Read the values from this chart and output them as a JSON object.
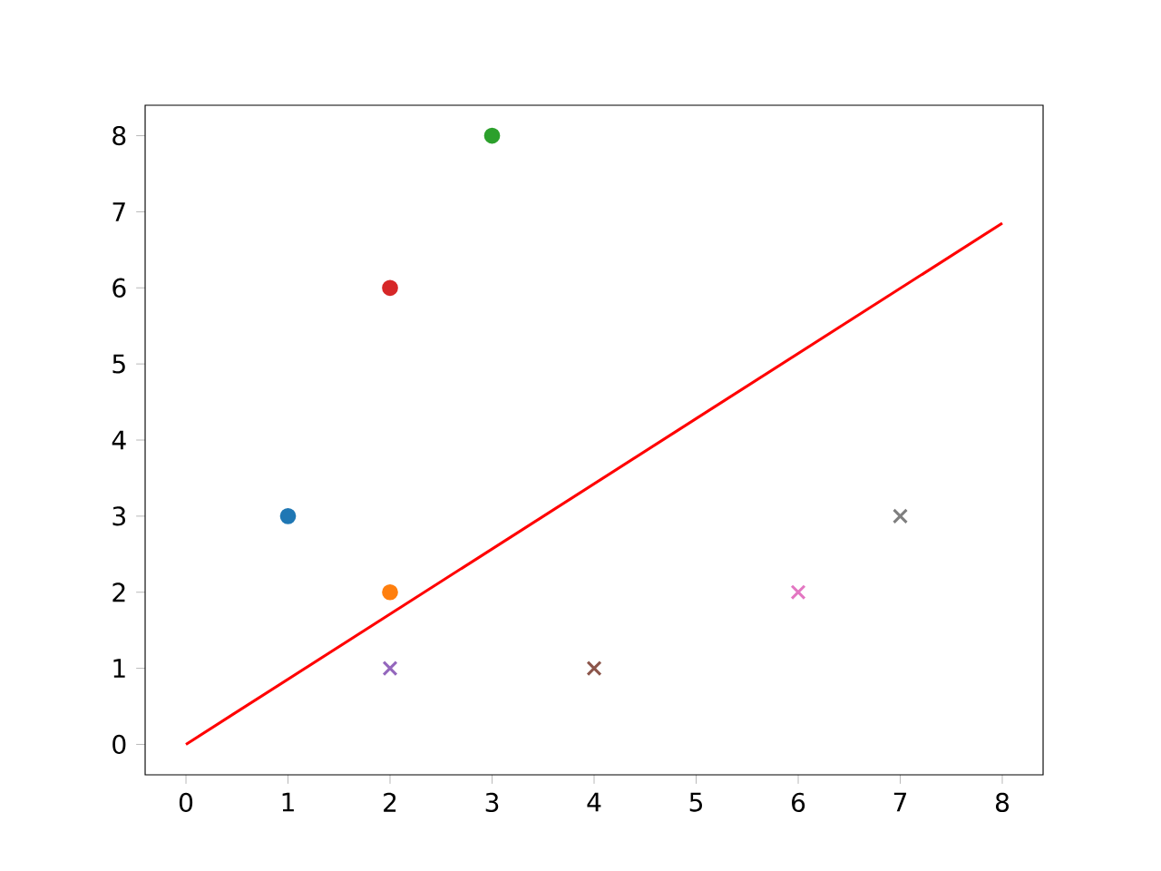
{
  "chart_data": {
    "type": "scatter",
    "xlim": [
      -0.4,
      8.4
    ],
    "ylim": [
      -0.4,
      8.4
    ],
    "xticks": [
      0,
      1,
      2,
      3,
      4,
      5,
      6,
      7,
      8
    ],
    "yticks": [
      0,
      1,
      2,
      3,
      4,
      5,
      6,
      7,
      8
    ],
    "grid": false,
    "series": [
      {
        "marker": "circle",
        "color": "#1f77b4",
        "x": [
          1
        ],
        "values": [
          3
        ]
      },
      {
        "marker": "circle",
        "color": "#ff7f0e",
        "x": [
          2
        ],
        "values": [
          2
        ]
      },
      {
        "marker": "circle",
        "color": "#2ca02c",
        "x": [
          3
        ],
        "values": [
          8
        ]
      },
      {
        "marker": "circle",
        "color": "#d62728",
        "x": [
          2
        ],
        "values": [
          6
        ]
      },
      {
        "marker": "cross",
        "color": "#9467bd",
        "x": [
          2
        ],
        "values": [
          1
        ]
      },
      {
        "marker": "cross",
        "color": "#8c564b",
        "x": [
          4
        ],
        "values": [
          1
        ]
      },
      {
        "marker": "cross",
        "color": "#e377c2",
        "x": [
          6
        ],
        "values": [
          2
        ]
      },
      {
        "marker": "cross",
        "color": "#7f7f7f",
        "x": [
          7
        ],
        "values": [
          3
        ]
      },
      {
        "type": "line",
        "marker": "none",
        "line_style": "solid",
        "color": "#ff0000",
        "x": [
          0,
          8
        ],
        "values": [
          0,
          6.85
        ]
      }
    ]
  }
}
